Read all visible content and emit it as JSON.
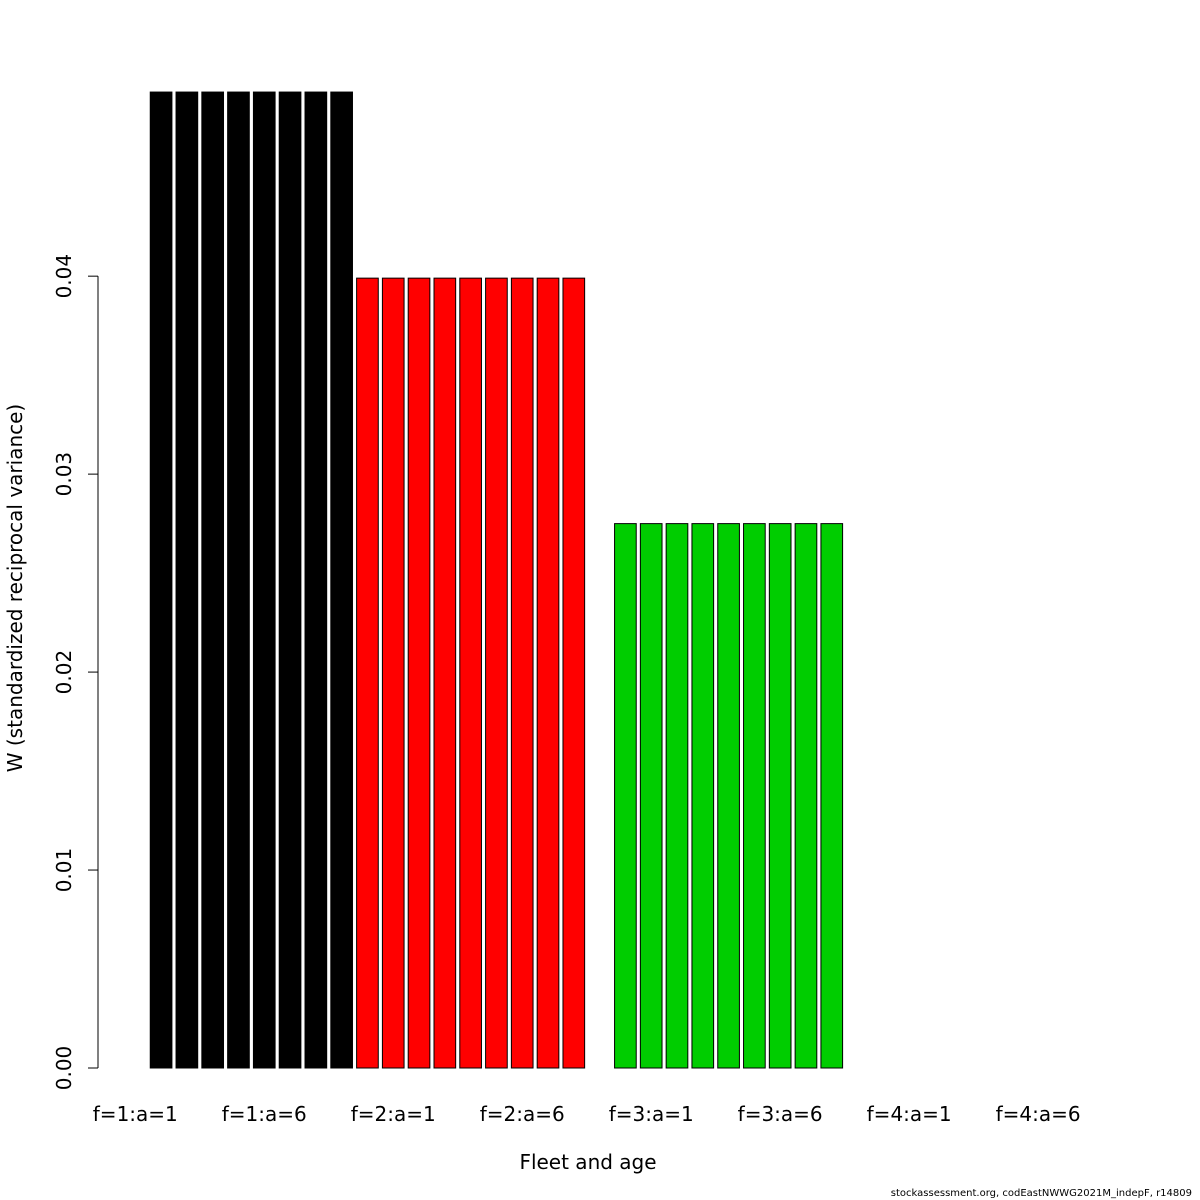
{
  "chart_data": {
    "type": "bar",
    "title": "",
    "xlabel": "Fleet and age",
    "ylabel": "W (standardized reciprocal variance)",
    "ylim": [
      0,
      0.049
    ],
    "yticks": [
      "0.00",
      "0.01",
      "0.02",
      "0.03",
      "0.04"
    ],
    "ytick_values": [
      0,
      0.01,
      0.02,
      0.03,
      0.04
    ],
    "x_tick_labels": [
      "f=1:a=1",
      "f=1:a=6",
      "f=2:a=1",
      "f=2:a=6",
      "f=3:a=1",
      "f=3:a=6",
      "f=4:a=1",
      "f=4:a=6"
    ],
    "x_tick_positions": [
      1,
      6,
      11,
      16,
      21,
      26,
      31,
      36
    ],
    "x_range": [
      -2.5,
      41.5
    ],
    "grid": false,
    "series": [
      {
        "color": "#000000",
        "x": [
          2,
          3,
          4,
          5,
          6,
          7,
          8,
          9
        ],
        "values": [
          0.0493,
          0.0493,
          0.0493,
          0.0493,
          0.0493,
          0.0493,
          0.0493,
          0.0493
        ]
      },
      {
        "color": "#ff0000",
        "x": [
          10,
          11,
          12,
          13,
          14,
          15,
          16,
          17,
          18
        ],
        "values": [
          0.0399,
          0.0399,
          0.0399,
          0.0399,
          0.0399,
          0.0399,
          0.0399,
          0.0399,
          0.0399
        ]
      },
      {
        "color": "#00cd00",
        "x": [
          20,
          21,
          22,
          23,
          24,
          25,
          26,
          27,
          28
        ],
        "values": [
          0.0275,
          0.0275,
          0.0275,
          0.0275,
          0.0275,
          0.0275,
          0.0275,
          0.0275,
          0.0275
        ]
      }
    ]
  },
  "footer": "stockassessment.org, codEastNWWG2021M_indepF, r14809"
}
